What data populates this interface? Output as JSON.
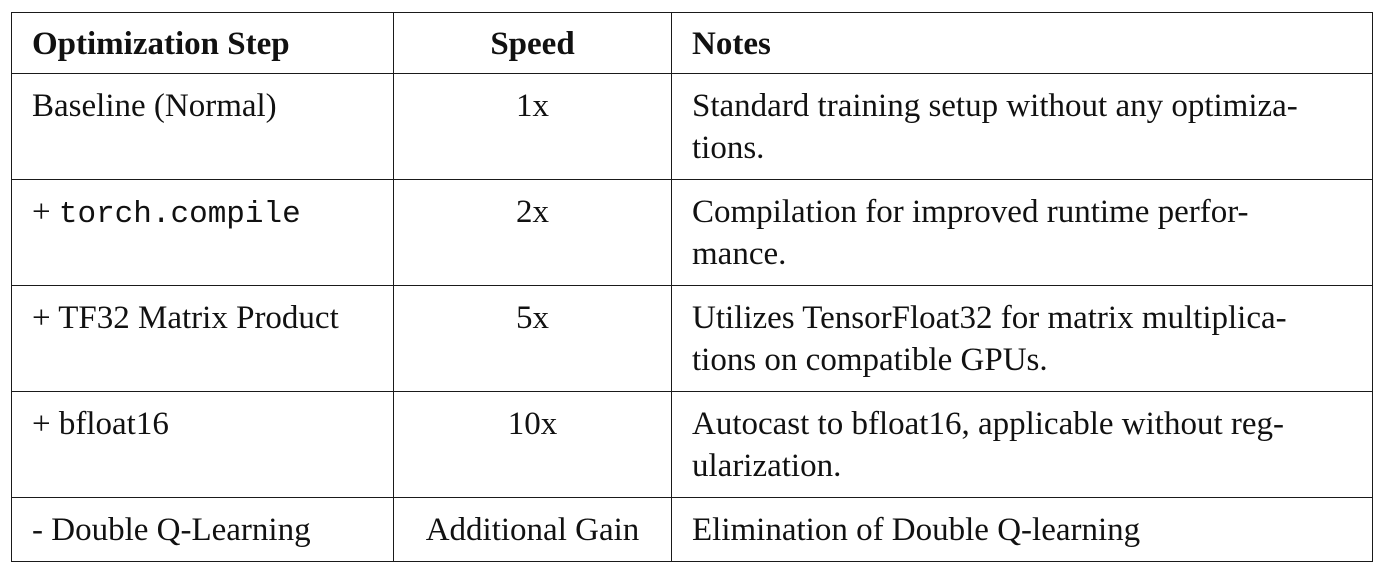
{
  "table": {
    "headers": {
      "step": "Optimization Step",
      "speed": "Speed",
      "notes": "Notes"
    },
    "rows": [
      {
        "step": "Baseline (Normal)",
        "speed": "1x",
        "notes": "Standard training setup without any optimiza-tions."
      },
      {
        "step_prefix": "+ ",
        "step_code": "torch.compile",
        "speed": "2x",
        "notes": "Compilation for improved runtime perfor-mance."
      },
      {
        "step": "+ TF32 Matrix Product",
        "speed": "5x",
        "notes": "Utilizes TensorFloat32 for matrix multiplica-tions on compatible GPUs."
      },
      {
        "step": "+ bfloat16",
        "speed": "10x",
        "notes": "Autocast to bfloat16, applicable without reg-ularization."
      },
      {
        "step": "- Double Q-Learning",
        "speed": "Additional Gain",
        "notes": "Elimination of Double Q-learning"
      }
    ]
  }
}
